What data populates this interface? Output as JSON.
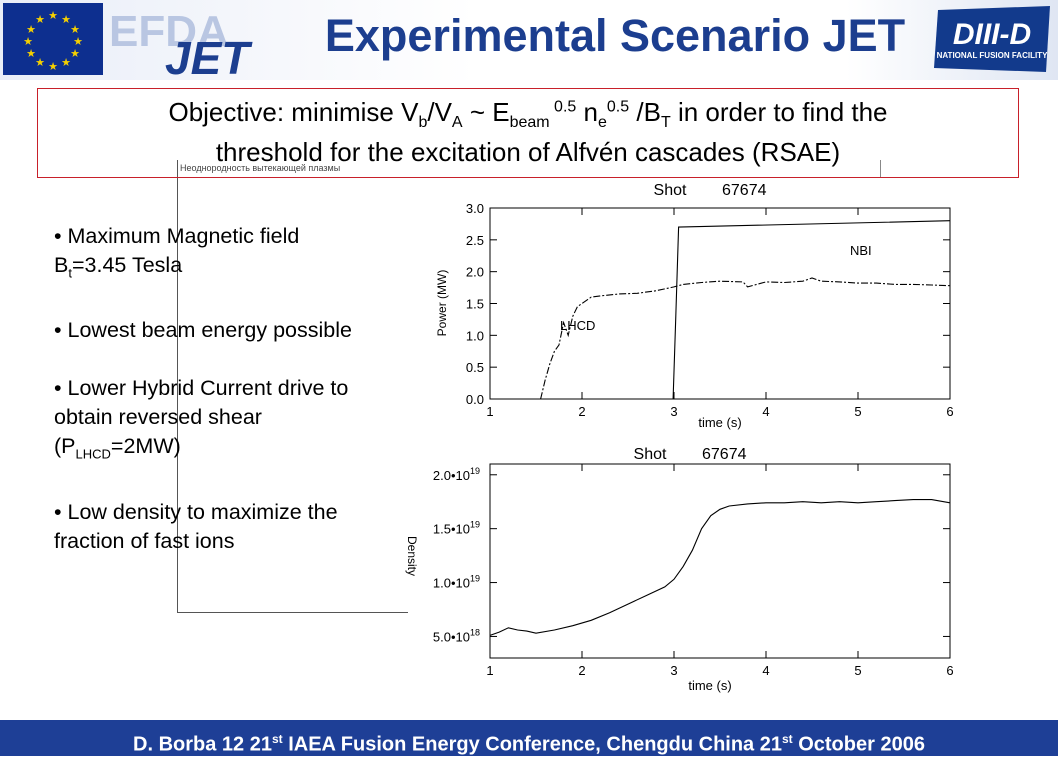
{
  "header": {
    "title": "Experimental Scenario JET",
    "efda_logo_text": "EFDA",
    "jet_logo_text": "JET",
    "diiid_logo_text": "DIII-D",
    "diiid_logo_subtitle": "NATIONAL FUSION FACILITY"
  },
  "objective": {
    "p1": "Objective: minimise V",
    "sub_b": "b",
    "p2": "/V",
    "sub_a": "A",
    "p3": " ~ E",
    "sub_beam": "beam",
    "sup_e": " 0.5",
    "p4": " n",
    "sub_e": "e",
    "sup_n": "0.5",
    "p5": " /B",
    "sub_t": "T",
    "p6": " in order to find the",
    "line2": "threshold for the excitation of Alfvén cascades (RSAE)"
  },
  "background_caption": "Неоднородность вытекающей плазмы",
  "bullets": {
    "b1_pre": "• Maximum Magnetic field B",
    "b1_sub": "t",
    "b1_post": "=3.45 Tesla",
    "b2": "• Lowest beam energy possible",
    "b3_pre": "• Lower Hybrid Current drive to obtain reversed shear (P",
    "b3_sub": "LHCD",
    "b3_post": "=2MW)",
    "b4": "• Low density to maximize the fraction of fast ions"
  },
  "chart_data": [
    {
      "type": "line",
      "title": "Shot        67674",
      "xlabel": "time (s)",
      "ylabel": "Power (MW)",
      "xlim": [
        1,
        6
      ],
      "ylim": [
        0,
        3
      ],
      "xticks": [
        "1",
        "2",
        "3",
        "4",
        "5",
        "6"
      ],
      "yticks": [
        "0.0",
        "0.5",
        "1.0",
        "1.5",
        "2.0",
        "2.5",
        "3.0"
      ],
      "annotations": [
        "NBI",
        "LHCD"
      ],
      "series": [
        {
          "name": "NBI",
          "style": "solid",
          "x": [
            1,
            2.99,
            2.99,
            3.02,
            3.02,
            3.05,
            3.05,
            6
          ],
          "y": [
            0,
            0,
            0.0,
            1.3,
            1.3,
            2.7,
            2.7,
            2.8
          ]
        },
        {
          "name": "LHCD",
          "style": "dash-dot",
          "x": [
            1.55,
            1.6,
            1.65,
            1.7,
            1.75,
            1.8,
            1.85,
            1.9,
            1.95,
            2.0,
            2.1,
            2.2,
            2.4,
            2.6,
            2.8,
            3.0,
            3.1,
            3.3,
            3.5,
            3.75,
            3.8,
            4.0,
            4.2,
            4.4,
            4.5,
            4.6,
            4.8,
            5.0,
            5.2,
            5.4,
            5.6,
            5.8,
            6.0
          ],
          "y": [
            0.0,
            0.3,
            0.55,
            0.75,
            0.85,
            1.2,
            1.0,
            1.3,
            1.45,
            1.5,
            1.6,
            1.62,
            1.65,
            1.66,
            1.7,
            1.76,
            1.8,
            1.83,
            1.85,
            1.84,
            1.76,
            1.84,
            1.83,
            1.85,
            1.9,
            1.85,
            1.84,
            1.82,
            1.82,
            1.8,
            1.8,
            1.79,
            1.78
          ]
        }
      ]
    },
    {
      "type": "line",
      "title": "Shot        67674",
      "xlabel": "time (s)",
      "ylabel": "Density",
      "xlim": [
        1,
        6
      ],
      "ylim": [
        3e+18,
        2.1e+19
      ],
      "xticks": [
        "1",
        "2",
        "3",
        "4",
        "5",
        "6"
      ],
      "yticks": [
        {
          "value": 5e+18,
          "mant": "5.0•10",
          "exp": "18"
        },
        {
          "value": 1e+19,
          "mant": "1.0•10",
          "exp": "19"
        },
        {
          "value": 1.5e+19,
          "mant": "1.5•10",
          "exp": "19"
        },
        {
          "value": 2e+19,
          "mant": "2.0•10",
          "exp": "19"
        }
      ],
      "series": [
        {
          "x": [
            1.0,
            1.1,
            1.2,
            1.3,
            1.4,
            1.5,
            1.7,
            1.9,
            2.1,
            2.3,
            2.5,
            2.7,
            2.9,
            3.0,
            3.1,
            3.2,
            3.3,
            3.4,
            3.5,
            3.6,
            3.8,
            4.0,
            4.2,
            4.4,
            4.6,
            4.8,
            5.0,
            5.2,
            5.4,
            5.6,
            5.8,
            6.0
          ],
          "y": [
            5.1e+18,
            5.4e+18,
            5.8e+18,
            5.6e+18,
            5.5e+18,
            5.3e+18,
            5.6e+18,
            6e+18,
            6.5e+18,
            7.2e+18,
            8e+18,
            8.8e+18,
            9.6e+18,
            1.03e+19,
            1.15e+19,
            1.3e+19,
            1.5e+19,
            1.62e+19,
            1.68e+19,
            1.71e+19,
            1.73e+19,
            1.74e+19,
            1.74e+19,
            1.75e+19,
            1.74e+19,
            1.75e+19,
            1.74e+19,
            1.75e+19,
            1.76e+19,
            1.77e+19,
            1.77e+19,
            1.74e+19
          ]
        }
      ]
    }
  ],
  "footer": {
    "p1": "D. Borba  12 21",
    "sup1": "st",
    "p2": " IAEA Fusion Energy Conference, Chengdu China 21",
    "sup2": "st",
    "p3": " October 2006"
  },
  "colors": {
    "title_blue": "#1c3e8f",
    "footer_blue": "#1e3f96",
    "box_border": "#c8202a",
    "eu_blue": "#0d2f8f",
    "eu_gold": "#f5d000"
  }
}
